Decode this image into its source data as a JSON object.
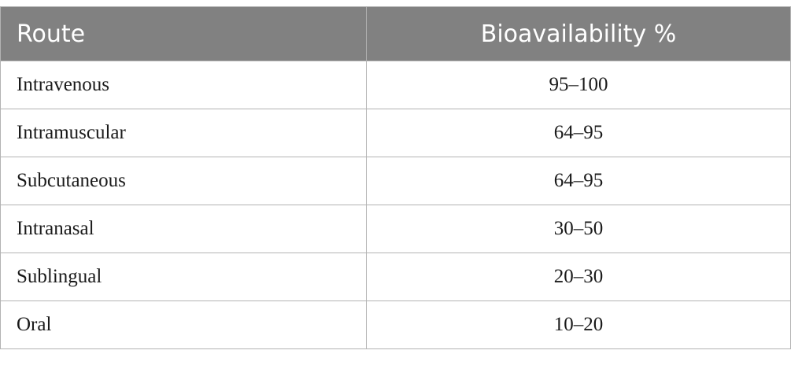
{
  "table": {
    "headers": {
      "route": "Route",
      "bioavailability": "Bioavailability %"
    },
    "rows": [
      {
        "route": "Intravenous",
        "bioavailability": "95–100"
      },
      {
        "route": "Intramuscular",
        "bioavailability": "64–95"
      },
      {
        "route": "Subcutaneous",
        "bioavailability": "64–95"
      },
      {
        "route": "Intranasal",
        "bioavailability": "30–50"
      },
      {
        "route": "Sublingual",
        "bioavailability": "20–30"
      },
      {
        "route": "Oral",
        "bioavailability": "10–20"
      }
    ]
  }
}
